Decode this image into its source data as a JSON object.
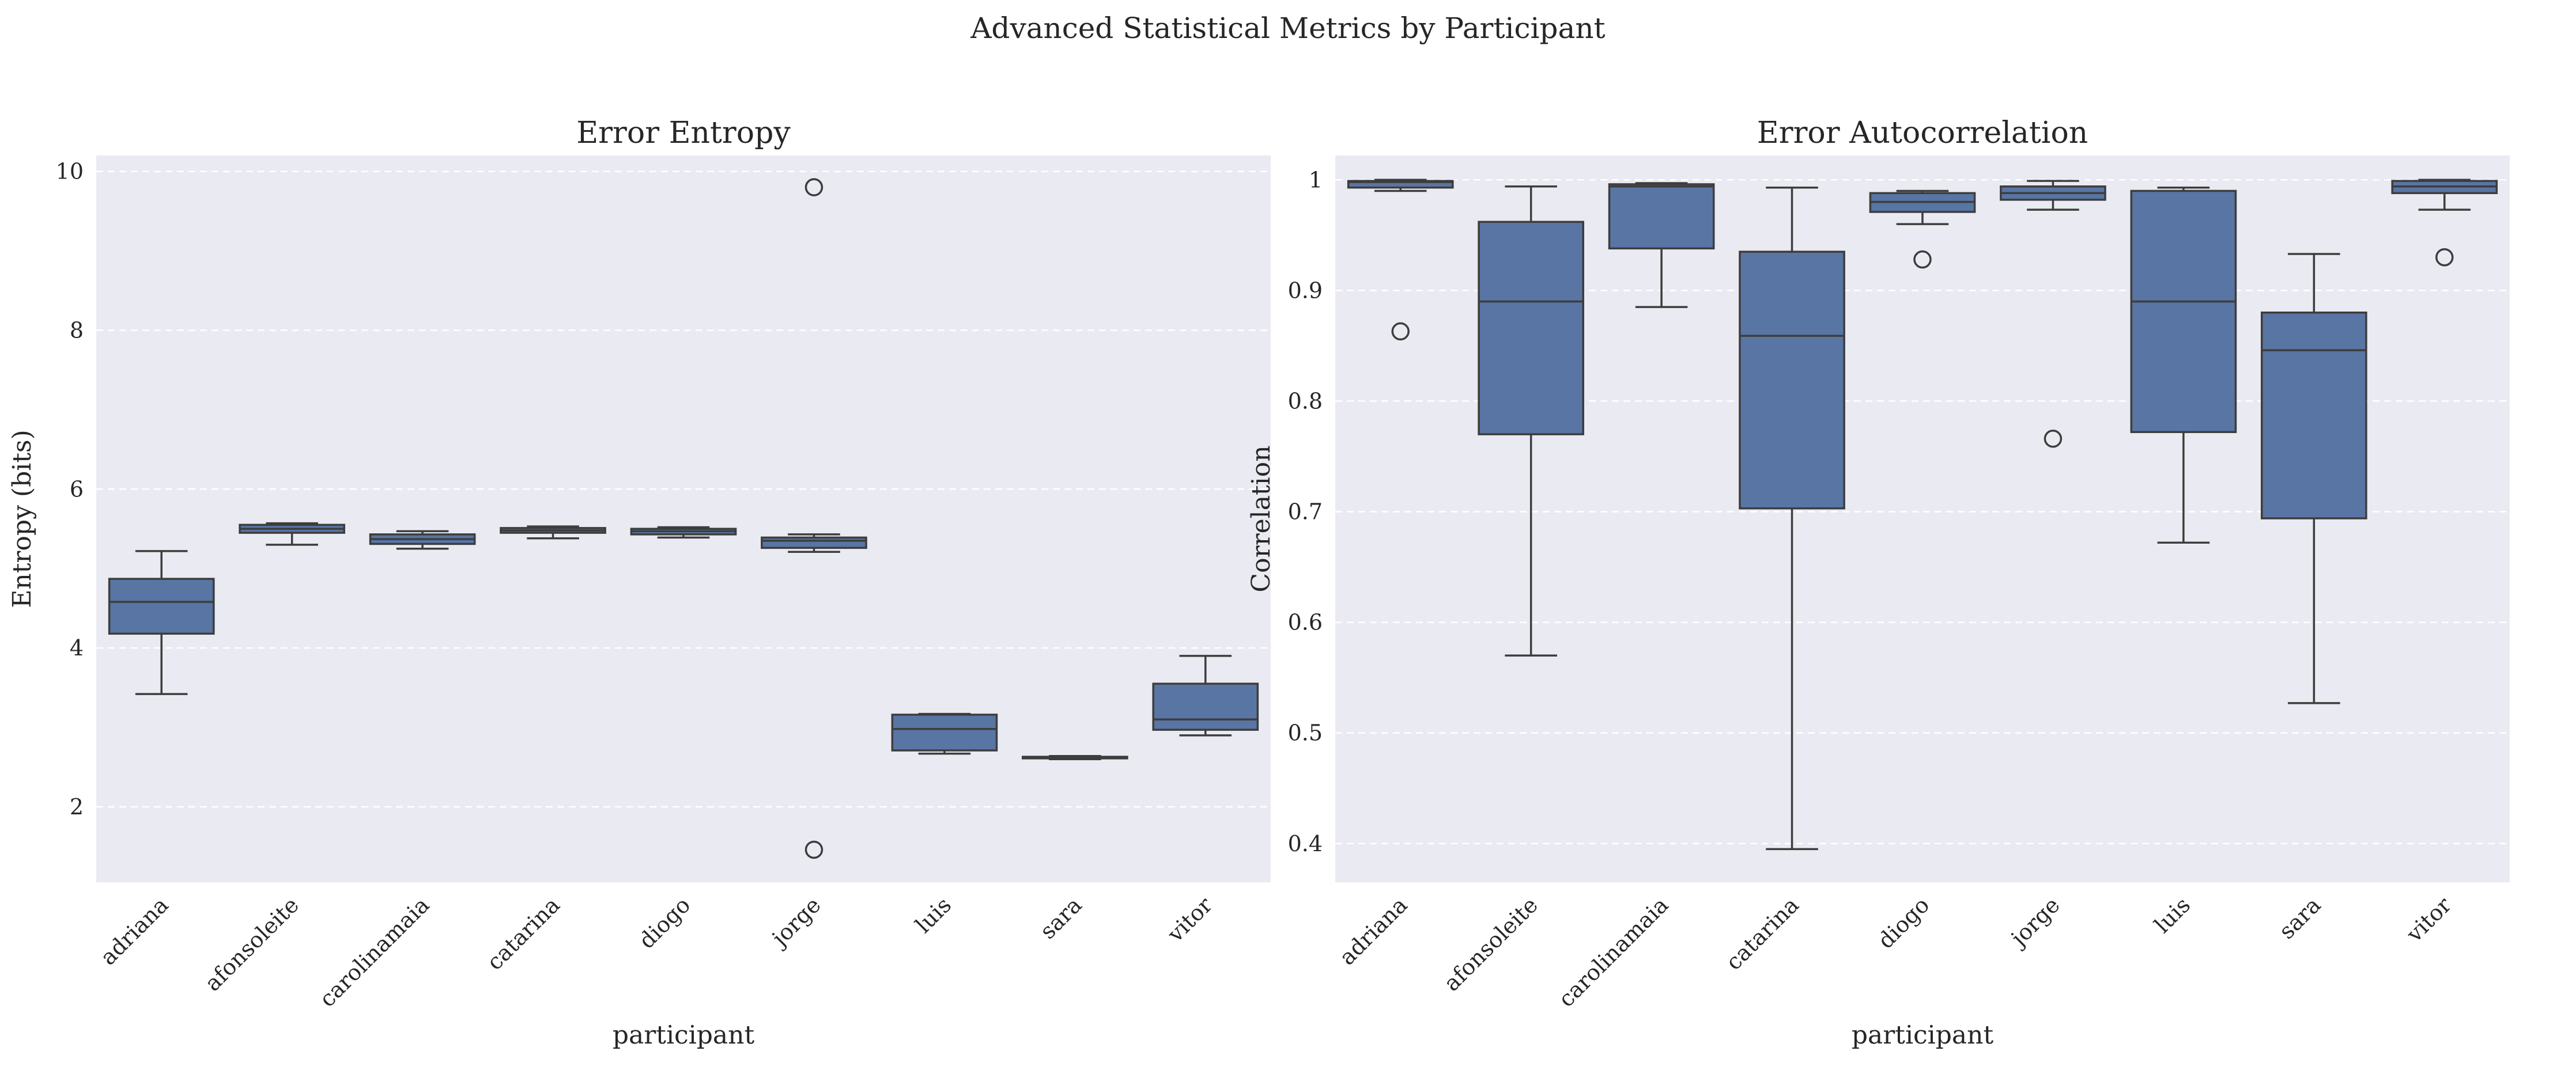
{
  "figure": {
    "title": "Advanced Statistical Metrics by Participant"
  },
  "colors": {
    "box_fill": "#5875a4",
    "line": "#3d3d3d",
    "axes_bg": "#eaeaf2",
    "grid": "#ffffff"
  },
  "chart_data": [
    {
      "type": "box",
      "title": "Error Entropy",
      "xlabel": "participant",
      "ylabel": "Entropy (bits)",
      "ylim": [
        1.05,
        10.2
      ],
      "yticks": [
        2,
        4,
        6,
        8,
        10
      ],
      "grid": true,
      "categories": [
        "adriana",
        "afonsoleite",
        "carolinamaia",
        "catarina",
        "diogo",
        "jorge",
        "luis",
        "sara",
        "vitor"
      ],
      "boxes": [
        {
          "whislo": 3.42,
          "q1": 4.18,
          "med": 4.58,
          "q3": 4.87,
          "whishi": 5.22,
          "fliers": []
        },
        {
          "whislo": 5.3,
          "q1": 5.45,
          "med": 5.5,
          "q3": 5.55,
          "whishi": 5.57,
          "fliers": []
        },
        {
          "whislo": 5.25,
          "q1": 5.31,
          "med": 5.37,
          "q3": 5.43,
          "whishi": 5.47,
          "fliers": []
        },
        {
          "whislo": 5.38,
          "q1": 5.45,
          "med": 5.48,
          "q3": 5.51,
          "whishi": 5.53,
          "fliers": []
        },
        {
          "whislo": 5.39,
          "q1": 5.43,
          "med": 5.47,
          "q3": 5.5,
          "whishi": 5.52,
          "fliers": []
        },
        {
          "whislo": 5.21,
          "q1": 5.26,
          "med": 5.35,
          "q3": 5.39,
          "whishi": 5.43,
          "fliers": [
            9.8,
            1.46
          ]
        },
        {
          "whislo": 2.67,
          "q1": 2.71,
          "med": 2.98,
          "q3": 3.16,
          "whishi": 3.17,
          "fliers": []
        },
        {
          "whislo": 2.6,
          "q1": 2.61,
          "med": 2.62,
          "q3": 2.63,
          "whishi": 2.64,
          "fliers": []
        },
        {
          "whislo": 2.9,
          "q1": 2.97,
          "med": 3.1,
          "q3": 3.55,
          "whishi": 3.9,
          "fliers": []
        }
      ]
    },
    {
      "type": "box",
      "title": "Error Autocorrelation",
      "xlabel": "participant",
      "ylabel": "Correlation",
      "ylim": [
        0.365,
        1.022
      ],
      "yticks": [
        0.4,
        0.5,
        0.6,
        0.7,
        0.8,
        0.9,
        1.0
      ],
      "grid": true,
      "categories": [
        "adriana",
        "afonsoleite",
        "carolinamaia",
        "catarina",
        "diogo",
        "jorge",
        "luis",
        "sara",
        "vitor"
      ],
      "boxes": [
        {
          "whislo": 0.99,
          "q1": 0.993,
          "med": 0.998,
          "q3": 0.999,
          "whishi": 1.0,
          "fliers": [
            0.863
          ]
        },
        {
          "whislo": 0.57,
          "q1": 0.77,
          "med": 0.89,
          "q3": 0.962,
          "whishi": 0.994,
          "fliers": []
        },
        {
          "whislo": 0.885,
          "q1": 0.938,
          "med": 0.994,
          "q3": 0.996,
          "whishi": 0.997,
          "fliers": []
        },
        {
          "whislo": 0.395,
          "q1": 0.703,
          "med": 0.859,
          "q3": 0.935,
          "whishi": 0.993,
          "fliers": []
        },
        {
          "whislo": 0.96,
          "q1": 0.971,
          "med": 0.98,
          "q3": 0.988,
          "whishi": 0.99,
          "fliers": [
            0.928
          ]
        },
        {
          "whislo": 0.973,
          "q1": 0.982,
          "med": 0.988,
          "q3": 0.994,
          "whishi": 0.999,
          "fliers": [
            0.766
          ]
        },
        {
          "whislo": 0.672,
          "q1": 0.772,
          "med": 0.89,
          "q3": 0.99,
          "whishi": 0.993,
          "fliers": []
        },
        {
          "whislo": 0.527,
          "q1": 0.694,
          "med": 0.846,
          "q3": 0.88,
          "whishi": 0.933,
          "fliers": []
        },
        {
          "whislo": 0.973,
          "q1": 0.988,
          "med": 0.994,
          "q3": 0.999,
          "whishi": 1.0,
          "fliers": [
            0.93
          ]
        }
      ]
    }
  ]
}
